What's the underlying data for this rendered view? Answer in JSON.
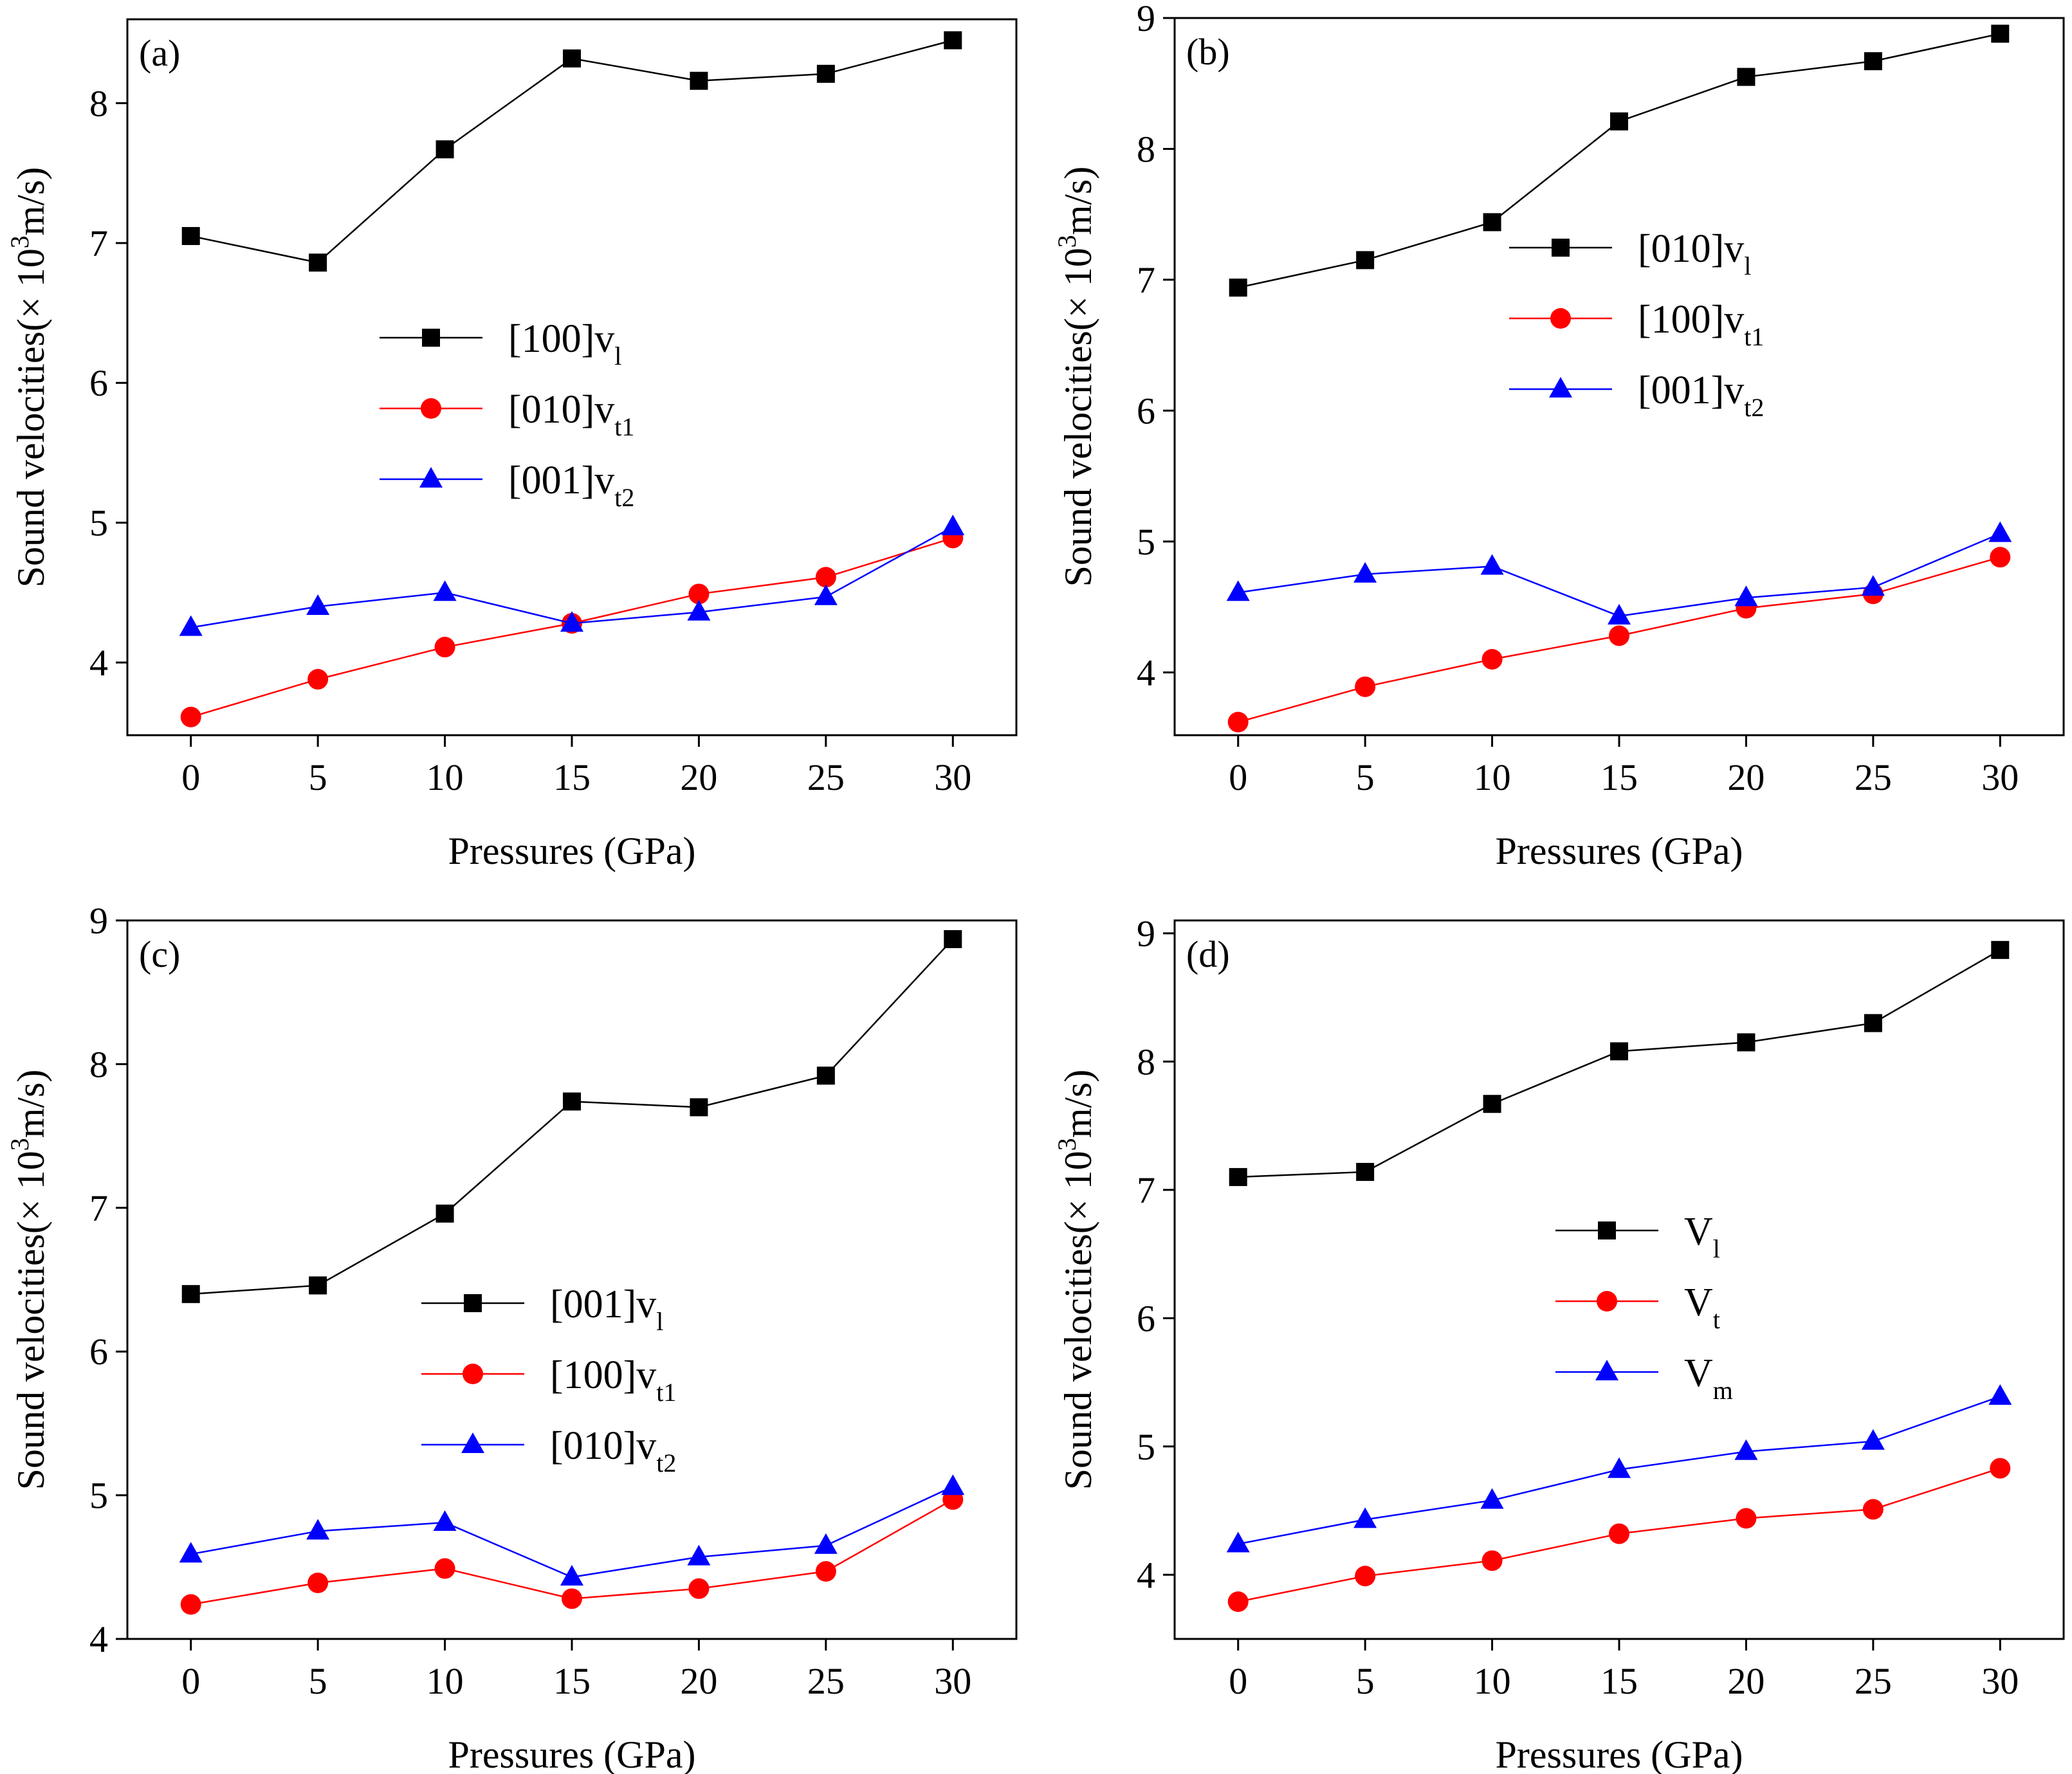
{
  "figure": {
    "colors": {
      "black": "#000000",
      "red": "#ff0000",
      "blue": "#0000ff"
    }
  },
  "chart_data": [
    {
      "type": "line",
      "panel_label": "(a)",
      "xlabel": "Pressures (GPa)",
      "ylabel": {
        "main": "Sound velocities(× 10",
        "sup": "3",
        "tail": "m/s)"
      },
      "x": [
        0,
        5,
        10,
        15,
        20,
        25,
        30
      ],
      "xticks": [
        "0",
        "5",
        "10",
        "15",
        "20",
        "25",
        "30"
      ],
      "xlim": [
        -2.5,
        32.5
      ],
      "yticks": [
        "4",
        "5",
        "6",
        "7",
        "8"
      ],
      "ylim": [
        3.48,
        8.6
      ],
      "legend_position": "center",
      "series": [
        {
          "base": "[100]v",
          "sub": "l",
          "color": "#000000",
          "marker": "square",
          "values": [
            7.05,
            6.86,
            7.67,
            8.32,
            8.16,
            8.21,
            8.45
          ]
        },
        {
          "base": "[010]v",
          "sub": "t1",
          "color": "#ff0000",
          "marker": "circle",
          "values": [
            3.61,
            3.88,
            4.11,
            4.28,
            4.49,
            4.61,
            4.89
          ]
        },
        {
          "base": "[001]v",
          "sub": "t2",
          "color": "#0000ff",
          "marker": "triangle",
          "values": [
            4.25,
            4.4,
            4.5,
            4.28,
            4.36,
            4.47,
            4.97
          ]
        }
      ]
    },
    {
      "type": "line",
      "panel_label": "(b)",
      "xlabel": "Pressures (GPa)",
      "ylabel": {
        "main": "Sound velocities(× 10",
        "sup": "3",
        "tail": "m/s)"
      },
      "x": [
        0,
        5,
        10,
        15,
        20,
        25,
        30
      ],
      "xticks": [
        "0",
        "5",
        "10",
        "15",
        "20",
        "25",
        "30"
      ],
      "xlim": [
        -2.5,
        32.5
      ],
      "yticks": [
        "4",
        "5",
        "6",
        "7",
        "8",
        "9"
      ],
      "ylim": [
        3.52,
        9.0
      ],
      "legend_position": "upper-right",
      "series": [
        {
          "base": "[010]v",
          "sub": "l",
          "color": "#000000",
          "marker": "square",
          "values": [
            6.94,
            7.15,
            7.44,
            8.21,
            8.55,
            8.67,
            8.88
          ]
        },
        {
          "base": "[100]v",
          "sub": "t1",
          "color": "#ff0000",
          "marker": "circle",
          "values": [
            3.62,
            3.89,
            4.1,
            4.28,
            4.49,
            4.6,
            4.88
          ]
        },
        {
          "base": "[001]v",
          "sub": "t2",
          "color": "#0000ff",
          "marker": "triangle",
          "values": [
            4.61,
            4.75,
            4.81,
            4.43,
            4.57,
            4.65,
            5.06
          ]
        }
      ]
    },
    {
      "type": "line",
      "panel_label": "(c)",
      "xlabel": "Pressures (GPa)",
      "ylabel": {
        "main": "Sound velocities(× 10",
        "sup": "3",
        "tail": "m/s)"
      },
      "x": [
        0,
        5,
        10,
        15,
        20,
        25,
        30
      ],
      "xticks": [
        "0",
        "5",
        "10",
        "15",
        "20",
        "25",
        "30"
      ],
      "xlim": [
        -2.5,
        32.5
      ],
      "yticks": [
        "4",
        "5",
        "6",
        "7",
        "8",
        "9"
      ],
      "ylim": [
        4.0,
        9.0
      ],
      "legend_position": "center-right",
      "series": [
        {
          "base": "[001]v",
          "sub": "l",
          "color": "#000000",
          "marker": "square",
          "values": [
            6.4,
            6.46,
            6.96,
            7.74,
            7.7,
            7.92,
            8.87
          ]
        },
        {
          "base": "[100]v",
          "sub": "t1",
          "color": "#ff0000",
          "marker": "circle",
          "values": [
            4.24,
            4.39,
            4.49,
            4.28,
            4.35,
            4.47,
            4.97
          ]
        },
        {
          "base": "[010]v",
          "sub": "t2",
          "color": "#0000ff",
          "marker": "triangle",
          "values": [
            4.59,
            4.75,
            4.81,
            4.43,
            4.57,
            4.65,
            5.06
          ]
        }
      ]
    },
    {
      "type": "line",
      "panel_label": "(d)",
      "xlabel": "Pressures (GPa)",
      "ylabel": {
        "main": "Sound velocities(× 10",
        "sup": "3",
        "tail": "m/s)"
      },
      "x": [
        0,
        5,
        10,
        15,
        20,
        25,
        30
      ],
      "xticks": [
        "0",
        "5",
        "10",
        "15",
        "20",
        "25",
        "30"
      ],
      "xlim": [
        -2.5,
        32.5
      ],
      "yticks": [
        "4",
        "5",
        "6",
        "7",
        "8",
        "9"
      ],
      "ylim": [
        3.5,
        9.1
      ],
      "legend_position": "center-right",
      "series": [
        {
          "base": "V",
          "sub": "l",
          "color": "#000000",
          "marker": "square",
          "values": [
            7.1,
            7.14,
            7.67,
            8.08,
            8.15,
            8.3,
            8.87
          ]
        },
        {
          "base": "V",
          "sub": "t",
          "color": "#ff0000",
          "marker": "circle",
          "values": [
            3.79,
            3.99,
            4.11,
            4.32,
            4.44,
            4.51,
            4.83
          ]
        },
        {
          "base": "V",
          "sub": "m",
          "color": "#0000ff",
          "marker": "triangle",
          "values": [
            4.24,
            4.43,
            4.58,
            4.82,
            4.96,
            5.04,
            5.39
          ]
        }
      ]
    }
  ]
}
